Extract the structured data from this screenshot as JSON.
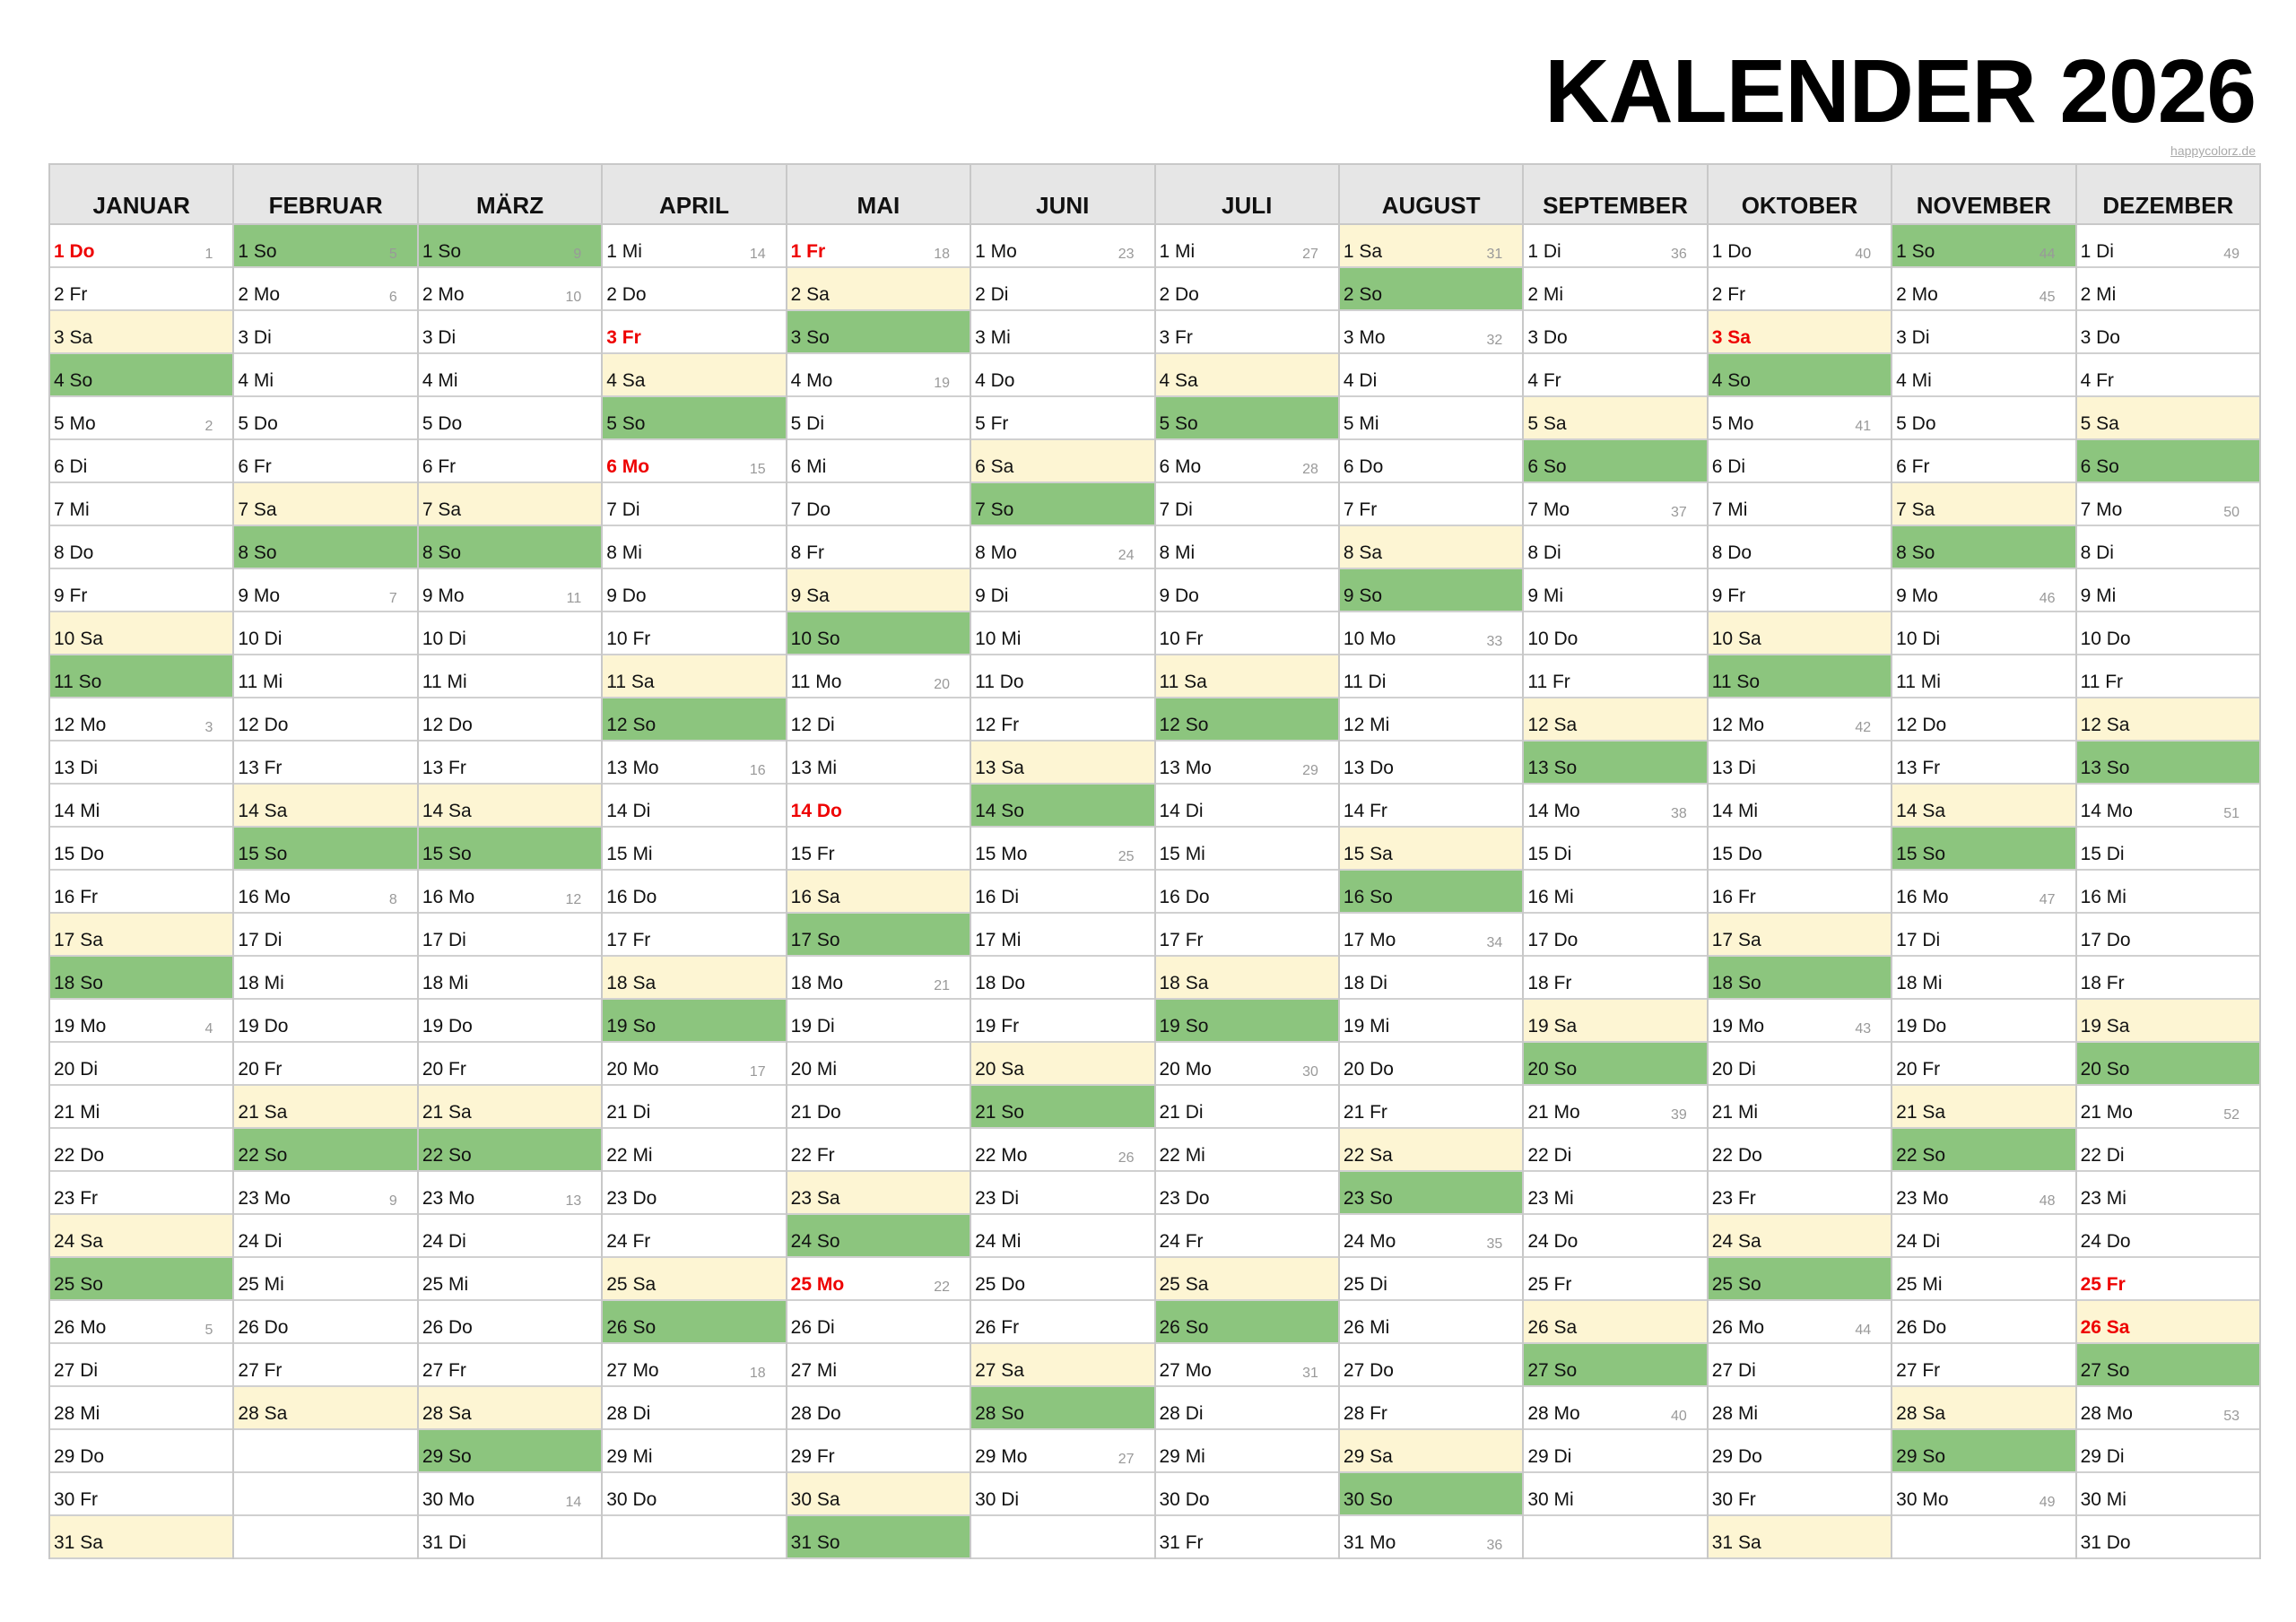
{
  "title": "KALENDER 2026",
  "credit": "happycolorz.de",
  "colors": {
    "saturday": "#fdf5d3",
    "sunday": "#8cc57e",
    "holiday_text": "#ee0000",
    "header_bg": "#e6e6e6"
  },
  "months": [
    {
      "name": "JANUAR",
      "days": [
        "1 Do",
        "2 Fr",
        "3 Sa",
        "4 So",
        "5 Mo",
        "6 Di",
        "7 Mi",
        "8 Do",
        "9 Fr",
        "10 Sa",
        "11 So",
        "12 Mo",
        "13 Di",
        "14 Mi",
        "15 Do",
        "16 Fr",
        "17 Sa",
        "18 So",
        "19 Mo",
        "20 Di",
        "21 Mi",
        "22 Do",
        "23 Fr",
        "24 Sa",
        "25 So",
        "26 Mo",
        "27 Di",
        "28 Mi",
        "29 Do",
        "30 Fr",
        "31 Sa"
      ],
      "weeks": {
        "1": "1",
        "5": "2",
        "12": "3",
        "19": "4",
        "26": "5"
      },
      "holidays": [
        1
      ]
    },
    {
      "name": "FEBRUAR",
      "days": [
        "1 So",
        "2 Mo",
        "3 Di",
        "4 Mi",
        "5 Do",
        "6 Fr",
        "7 Sa",
        "8 So",
        "9 Mo",
        "10 Di",
        "11 Mi",
        "12 Do",
        "13 Fr",
        "14 Sa",
        "15 So",
        "16 Mo",
        "17 Di",
        "18 Mi",
        "19 Do",
        "20 Fr",
        "21 Sa",
        "22 So",
        "23 Mo",
        "24 Di",
        "25 Mi",
        "26 Do",
        "27 Fr",
        "28 Sa"
      ],
      "weeks": {
        "1": "5",
        "2": "6",
        "9": "7",
        "16": "8",
        "23": "9"
      },
      "holidays": []
    },
    {
      "name": "MÄRZ",
      "days": [
        "1 So",
        "2 Mo",
        "3 Di",
        "4 Mi",
        "5 Do",
        "6 Fr",
        "7 Sa",
        "8 So",
        "9 Mo",
        "10 Di",
        "11 Mi",
        "12 Do",
        "13 Fr",
        "14 Sa",
        "15 So",
        "16 Mo",
        "17 Di",
        "18 Mi",
        "19 Do",
        "20 Fr",
        "21 Sa",
        "22 So",
        "23 Mo",
        "24 Di",
        "25 Mi",
        "26 Do",
        "27 Fr",
        "28 Sa",
        "29 So",
        "30 Mo",
        "31 Di"
      ],
      "weeks": {
        "1": "9",
        "2": "10",
        "9": "11",
        "16": "12",
        "23": "13",
        "30": "14"
      },
      "holidays": []
    },
    {
      "name": "APRIL",
      "days": [
        "1 Mi",
        "2 Do",
        "3 Fr",
        "4 Sa",
        "5 So",
        "6 Mo",
        "7 Di",
        "8 Mi",
        "9 Do",
        "10 Fr",
        "11 Sa",
        "12 So",
        "13 Mo",
        "14 Di",
        "15 Mi",
        "16 Do",
        "17 Fr",
        "18 Sa",
        "19 So",
        "20 Mo",
        "21 Di",
        "22 Mi",
        "23 Do",
        "24 Fr",
        "25 Sa",
        "26 So",
        "27 Mo",
        "28 Di",
        "29 Mi",
        "30 Do"
      ],
      "weeks": {
        "1": "14",
        "6": "15",
        "13": "16",
        "20": "17",
        "27": "18"
      },
      "holidays": [
        3,
        6
      ]
    },
    {
      "name": "MAI",
      "days": [
        "1 Fr",
        "2 Sa",
        "3 So",
        "4 Mo",
        "5 Di",
        "6 Mi",
        "7 Do",
        "8 Fr",
        "9 Sa",
        "10 So",
        "11 Mo",
        "12 Di",
        "13 Mi",
        "14 Do",
        "15 Fr",
        "16 Sa",
        "17 So",
        "18 Mo",
        "19 Di",
        "20 Mi",
        "21 Do",
        "22 Fr",
        "23 Sa",
        "24 So",
        "25 Mo",
        "26 Di",
        "27 Mi",
        "28 Do",
        "29 Fr",
        "30 Sa",
        "31 So"
      ],
      "weeks": {
        "1": "18",
        "4": "19",
        "11": "20",
        "18": "21",
        "25": "22"
      },
      "holidays": [
        1,
        14,
        25
      ]
    },
    {
      "name": "JUNI",
      "days": [
        "1 Mo",
        "2 Di",
        "3 Mi",
        "4 Do",
        "5 Fr",
        "6 Sa",
        "7 So",
        "8 Mo",
        "9 Di",
        "10 Mi",
        "11 Do",
        "12 Fr",
        "13 Sa",
        "14 So",
        "15 Mo",
        "16 Di",
        "17 Mi",
        "18 Do",
        "19 Fr",
        "20 Sa",
        "21 So",
        "22 Mo",
        "23 Di",
        "24 Mi",
        "25 Do",
        "26 Fr",
        "27 Sa",
        "28 So",
        "29 Mo",
        "30 Di"
      ],
      "weeks": {
        "1": "23",
        "8": "24",
        "15": "25",
        "22": "26",
        "29": "27"
      },
      "holidays": []
    },
    {
      "name": "JULI",
      "days": [
        "1 Mi",
        "2 Do",
        "3 Fr",
        "4 Sa",
        "5 So",
        "6 Mo",
        "7 Di",
        "8 Mi",
        "9 Do",
        "10 Fr",
        "11 Sa",
        "12 So",
        "13 Mo",
        "14 Di",
        "15 Mi",
        "16 Do",
        "17 Fr",
        "18 Sa",
        "19 So",
        "20 Mo",
        "21 Di",
        "22 Mi",
        "23 Do",
        "24 Fr",
        "25 Sa",
        "26 So",
        "27 Mo",
        "28 Di",
        "29 Mi",
        "30 Do",
        "31 Fr"
      ],
      "weeks": {
        "1": "27",
        "6": "28",
        "13": "29",
        "20": "30",
        "27": "31"
      },
      "holidays": []
    },
    {
      "name": "AUGUST",
      "days": [
        "1 Sa",
        "2 So",
        "3 Mo",
        "4 Di",
        "5 Mi",
        "6 Do",
        "7 Fr",
        "8 Sa",
        "9 So",
        "10 Mo",
        "11 Di",
        "12 Mi",
        "13 Do",
        "14 Fr",
        "15 Sa",
        "16 So",
        "17 Mo",
        "18 Di",
        "19 Mi",
        "20 Do",
        "21 Fr",
        "22 Sa",
        "23 So",
        "24 Mo",
        "25 Di",
        "26 Mi",
        "27 Do",
        "28 Fr",
        "29 Sa",
        "30 So",
        "31 Mo"
      ],
      "weeks": {
        "1": "31",
        "3": "32",
        "10": "33",
        "17": "34",
        "24": "35",
        "31": "36"
      },
      "holidays": []
    },
    {
      "name": "SEPTEMBER",
      "days": [
        "1 Di",
        "2 Mi",
        "3 Do",
        "4 Fr",
        "5 Sa",
        "6 So",
        "7 Mo",
        "8 Di",
        "9 Mi",
        "10 Do",
        "11 Fr",
        "12 Sa",
        "13 So",
        "14 Mo",
        "15 Di",
        "16 Mi",
        "17 Do",
        "18 Fr",
        "19 Sa",
        "20 So",
        "21 Mo",
        "22 Di",
        "23 Mi",
        "24 Do",
        "25 Fr",
        "26 Sa",
        "27 So",
        "28 Mo",
        "29 Di",
        "30 Mi"
      ],
      "weeks": {
        "1": "36",
        "7": "37",
        "14": "38",
        "21": "39",
        "28": "40"
      },
      "holidays": []
    },
    {
      "name": "OKTOBER",
      "days": [
        "1 Do",
        "2 Fr",
        "3 Sa",
        "4 So",
        "5 Mo",
        "6 Di",
        "7 Mi",
        "8 Do",
        "9 Fr",
        "10 Sa",
        "11 So",
        "12 Mo",
        "13 Di",
        "14 Mi",
        "15 Do",
        "16 Fr",
        "17 Sa",
        "18 So",
        "19 Mo",
        "20 Di",
        "21 Mi",
        "22 Do",
        "23 Fr",
        "24 Sa",
        "25 So",
        "26 Mo",
        "27 Di",
        "28 Mi",
        "29 Do",
        "30 Fr",
        "31 Sa"
      ],
      "weeks": {
        "1": "40",
        "5": "41",
        "12": "42",
        "19": "43",
        "26": "44"
      },
      "holidays": [
        3
      ]
    },
    {
      "name": "NOVEMBER",
      "days": [
        "1 So",
        "2 Mo",
        "3 Di",
        "4 Mi",
        "5 Do",
        "6 Fr",
        "7 Sa",
        "8 So",
        "9 Mo",
        "10 Di",
        "11 Mi",
        "12 Do",
        "13 Fr",
        "14 Sa",
        "15 So",
        "16 Mo",
        "17 Di",
        "18 Mi",
        "19 Do",
        "20 Fr",
        "21 Sa",
        "22 So",
        "23 Mo",
        "24 Di",
        "25 Mi",
        "26 Do",
        "27 Fr",
        "28 Sa",
        "29 So",
        "30 Mo"
      ],
      "weeks": {
        "1": "44",
        "2": "45",
        "9": "46",
        "16": "47",
        "23": "48",
        "30": "49"
      },
      "holidays": []
    },
    {
      "name": "DEZEMBER",
      "days": [
        "1 Di",
        "2 Mi",
        "3 Do",
        "4 Fr",
        "5 Sa",
        "6 So",
        "7 Mo",
        "8 Di",
        "9 Mi",
        "10 Do",
        "11 Fr",
        "12 Sa",
        "13 So",
        "14 Mo",
        "15 Di",
        "16 Mi",
        "17 Do",
        "18 Fr",
        "19 Sa",
        "20 So",
        "21 Mo",
        "22 Di",
        "23 Mi",
        "24 Do",
        "25 Fr",
        "26 Sa",
        "27 So",
        "28 Mo",
        "29 Di",
        "30 Mi",
        "31 Do"
      ],
      "weeks": {
        "1": "49",
        "7": "50",
        "14": "51",
        "21": "52",
        "28": "53"
      },
      "holidays": [
        25,
        26
      ]
    }
  ]
}
